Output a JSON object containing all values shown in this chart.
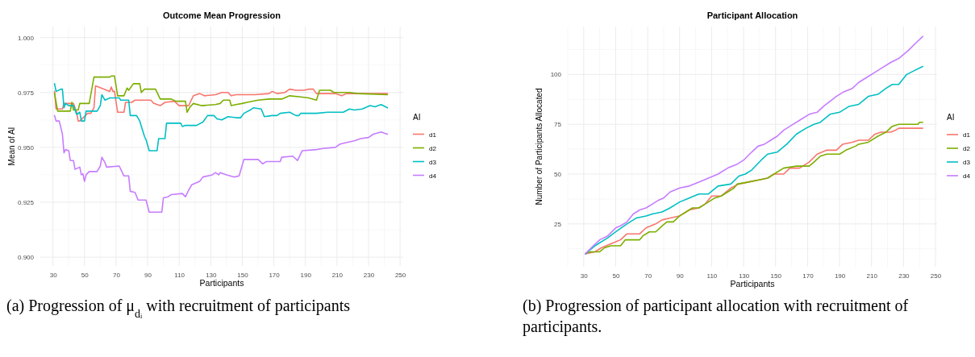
{
  "chart_data": [
    {
      "type": "line",
      "title": "Outcome Mean Progression",
      "xlabel": "Participants",
      "ylabel": "Mean of AI",
      "legend_title": "AI",
      "legend": "right",
      "grid": true,
      "xlim": [
        22,
        252
      ],
      "xticks": [
        30,
        50,
        70,
        90,
        110,
        130,
        150,
        170,
        190,
        210,
        230,
        250
      ],
      "ylim": [
        0.896,
        1.005
      ],
      "yticks": [
        {
          "value": 0.9,
          "label": "0.900"
        },
        {
          "value": 0.925,
          "label": "0.925"
        },
        {
          "value": 0.95,
          "label": "0.950"
        },
        {
          "value": 0.975,
          "label": "0.975"
        },
        {
          "value": 1,
          "label": "1.000"
        }
      ],
      "series": [
        {
          "name": "d1",
          "color": "#f8766d",
          "x": [
            31,
            32,
            36,
            37,
            42,
            43,
            45,
            46,
            47,
            52,
            54,
            56,
            57,
            66,
            67,
            68,
            69,
            71,
            75,
            76,
            80,
            82,
            92,
            94,
            98,
            101,
            107,
            110,
            116,
            117,
            119,
            123,
            126,
            133,
            137,
            141,
            143,
            146,
            158,
            167,
            169,
            172,
            177,
            180,
            184,
            189,
            192,
            195,
            197,
            201,
            209,
            213,
            216,
            242
          ],
          "values": [
            0.9755,
            0.9675,
            0.9675,
            0.97,
            0.97,
            0.97,
            0.966,
            0.962,
            0.962,
            0.9655,
            0.9655,
            0.968,
            0.978,
            0.9755,
            0.9775,
            0.9755,
            0.9755,
            0.966,
            0.966,
            0.9705,
            0.9705,
            0.9715,
            0.9715,
            0.97,
            0.969,
            0.9705,
            0.971,
            0.969,
            0.969,
            0.9705,
            0.9735,
            0.9745,
            0.9735,
            0.974,
            0.975,
            0.975,
            0.9735,
            0.974,
            0.974,
            0.9745,
            0.9755,
            0.9745,
            0.975,
            0.9765,
            0.976,
            0.976,
            0.9765,
            0.9765,
            0.9745,
            0.9745,
            0.9745,
            0.9735,
            0.9745,
            0.9745
          ]
        },
        {
          "name": "d2",
          "color": "#7cae00",
          "x": [
            31,
            33,
            41,
            42,
            43,
            46,
            47,
            53,
            56,
            66,
            67,
            69,
            71,
            75,
            77,
            78,
            81,
            85,
            86,
            88,
            95,
            98,
            105,
            108,
            114,
            115,
            117,
            119,
            124,
            133,
            136,
            138,
            142,
            143,
            146,
            150,
            153,
            160,
            167,
            175,
            180,
            187,
            192,
            197,
            199,
            206,
            208,
            218,
            223,
            242
          ],
          "values": [
            0.9747,
            0.9665,
            0.9665,
            0.9705,
            0.967,
            0.967,
            0.97,
            0.97,
            0.982,
            0.982,
            0.9825,
            0.9825,
            0.9735,
            0.9735,
            0.977,
            0.976,
            0.979,
            0.979,
            0.975,
            0.9765,
            0.9765,
            0.972,
            0.972,
            0.971,
            0.971,
            0.966,
            0.9685,
            0.97,
            0.969,
            0.9695,
            0.97,
            0.9715,
            0.9715,
            0.969,
            0.9695,
            0.97,
            0.9705,
            0.9715,
            0.972,
            0.972,
            0.9735,
            0.973,
            0.9725,
            0.9715,
            0.976,
            0.976,
            0.975,
            0.975,
            0.9745,
            0.974
          ]
        },
        {
          "name": "d3",
          "color": "#00bfc4",
          "x": [
            31,
            32,
            35,
            36,
            37,
            38,
            40,
            43,
            45,
            47,
            48,
            50,
            51,
            58,
            60,
            61,
            63,
            66,
            72,
            73,
            78,
            79,
            83,
            85,
            88,
            89,
            91,
            96,
            97,
            101,
            102,
            111,
            112,
            114,
            121,
            125,
            128,
            132,
            134,
            137,
            141,
            146,
            149,
            151,
            155,
            157,
            162,
            164,
            169,
            172,
            174,
            180,
            184,
            186,
            187,
            197,
            204,
            209,
            214,
            218,
            221,
            226,
            231,
            234,
            238,
            242
          ],
          "values": [
            0.979,
            0.9755,
            0.9765,
            0.9765,
            0.968,
            0.97,
            0.969,
            0.969,
            0.965,
            0.966,
            0.962,
            0.962,
            0.9665,
            0.9665,
            0.969,
            0.974,
            0.9715,
            0.9725,
            0.9725,
            0.9715,
            0.9715,
            0.9645,
            0.9645,
            0.962,
            0.955,
            0.9535,
            0.9485,
            0.9485,
            0.954,
            0.954,
            0.961,
            0.961,
            0.9595,
            0.96,
            0.96,
            0.9615,
            0.9645,
            0.9645,
            0.963,
            0.9625,
            0.964,
            0.9635,
            0.9635,
            0.9655,
            0.967,
            0.968,
            0.9675,
            0.964,
            0.9645,
            0.9645,
            0.9655,
            0.966,
            0.9645,
            0.9645,
            0.9655,
            0.9655,
            0.966,
            0.966,
            0.966,
            0.9675,
            0.967,
            0.9675,
            0.969,
            0.9685,
            0.9695,
            0.968
          ]
        },
        {
          "name": "d4",
          "color": "#c77cff",
          "x": [
            31,
            32,
            34,
            36,
            37,
            38,
            40,
            41,
            43,
            44,
            47,
            48,
            49,
            50,
            51,
            53,
            58,
            60,
            61,
            63,
            64,
            72,
            75,
            78,
            79,
            82,
            84,
            89,
            91,
            99,
            100,
            103,
            105,
            112,
            114,
            116,
            118,
            123,
            125,
            131,
            133,
            135,
            136,
            140,
            145,
            148,
            151,
            160,
            163,
            165,
            174,
            175,
            182,
            185,
            188,
            197,
            201,
            209,
            212,
            218,
            221,
            225,
            230,
            233,
            238,
            240,
            242
          ],
          "values": [
            0.9645,
            0.962,
            0.962,
            0.956,
            0.9475,
            0.949,
            0.9485,
            0.944,
            0.944,
            0.94,
            0.941,
            0.9375,
            0.938,
            0.9345,
            0.9375,
            0.939,
            0.939,
            0.9415,
            0.9455,
            0.943,
            0.941,
            0.9415,
            0.937,
            0.937,
            0.93,
            0.9295,
            0.926,
            0.926,
            0.9205,
            0.9205,
            0.927,
            0.9275,
            0.9285,
            0.929,
            0.9275,
            0.9305,
            0.933,
            0.9345,
            0.9365,
            0.9375,
            0.9385,
            0.9375,
            0.9385,
            0.9375,
            0.9365,
            0.937,
            0.9445,
            0.9445,
            0.9425,
            0.9435,
            0.9435,
            0.9455,
            0.946,
            0.944,
            0.9485,
            0.949,
            0.9495,
            0.95,
            0.9515,
            0.9525,
            0.953,
            0.954,
            0.9545,
            0.956,
            0.957,
            0.9565,
            0.956
          ]
        }
      ],
      "annotations": [
        "(a) Progression of μ$_{dᵢ}$ with recruitment of participants"
      ]
    },
    {
      "type": "line",
      "title": "Participant Allocation",
      "xlabel": "Participants",
      "ylabel": "Number of Participants Allocated",
      "legend_title": "AI",
      "legend": "right",
      "grid": true,
      "xlim": [
        20,
        251
      ],
      "xticks": [
        30,
        50,
        70,
        90,
        110,
        130,
        150,
        170,
        190,
        210,
        230,
        250
      ],
      "ylim": [
        3.5,
        124
      ],
      "yticks": [
        25,
        50,
        75,
        100
      ],
      "series": [
        {
          "name": "d1",
          "color": "#f8766d",
          "x": [
            31,
            37,
            41,
            47,
            53,
            57,
            65,
            69,
            75,
            79,
            84,
            90,
            96,
            102,
            106,
            110,
            116,
            122,
            127,
            133,
            139,
            145,
            149,
            155,
            159,
            165,
            171,
            176,
            182,
            188,
            192,
            198,
            202,
            208,
            212,
            216,
            222,
            225,
            227,
            242
          ],
          "values": [
            10,
            11,
            13,
            15,
            17,
            20,
            20,
            23,
            25,
            27,
            28,
            29,
            32,
            33,
            35,
            39,
            39,
            43,
            45,
            46,
            47,
            48,
            50,
            50,
            53,
            53,
            56,
            60,
            62,
            62,
            65,
            66,
            67,
            67,
            70,
            71,
            71,
            72,
            73,
            73
          ]
        },
        {
          "name": "d2",
          "color": "#7cae00",
          "x": [
            31,
            34,
            40,
            43,
            47,
            53,
            56,
            65,
            67,
            71,
            75,
            79,
            82,
            86,
            90,
            94,
            98,
            102,
            108,
            112,
            116,
            120,
            124,
            126,
            133,
            139,
            145,
            149,
            155,
            163,
            171,
            174,
            178,
            182,
            190,
            194,
            200,
            202,
            208,
            214,
            219,
            223,
            227,
            239,
            240,
            242
          ],
          "values": [
            10,
            11,
            11,
            13,
            14,
            14,
            17,
            17,
            19,
            21,
            21,
            24,
            26,
            26,
            29,
            31,
            33,
            33,
            36,
            38,
            39,
            41,
            43,
            45,
            46,
            47,
            48,
            50,
            53,
            54,
            54,
            56,
            59,
            60,
            60,
            62,
            64,
            65,
            66,
            69,
            71,
            74,
            75,
            75,
            76,
            76
          ]
        },
        {
          "name": "d3",
          "color": "#00bfc4",
          "x": [
            31,
            37,
            45,
            50,
            57,
            63,
            69,
            73,
            79,
            84,
            90,
            96,
            102,
            108,
            114,
            122,
            127,
            131,
            135,
            141,
            145,
            151,
            157,
            163,
            169,
            174,
            178,
            184,
            190,
            196,
            202,
            208,
            214,
            219,
            223,
            227,
            232,
            237,
            242
          ],
          "values": [
            10,
            14,
            18,
            21,
            25,
            28,
            29,
            30,
            31,
            33,
            36,
            38,
            40,
            40,
            44,
            45,
            49,
            50,
            52,
            57,
            60,
            61,
            65,
            70,
            73,
            75,
            76,
            80,
            81,
            84,
            85,
            89,
            90,
            93,
            95,
            95,
            100,
            102,
            104
          ]
        },
        {
          "name": "d4",
          "color": "#c77cff",
          "x": [
            31,
            36,
            40,
            45,
            50,
            53,
            57,
            61,
            65,
            69,
            73,
            77,
            80,
            84,
            90,
            96,
            102,
            108,
            114,
            120,
            126,
            130,
            135,
            139,
            143,
            147,
            151,
            155,
            161,
            165,
            171,
            176,
            180,
            188,
            192,
            198,
            202,
            206,
            212,
            216,
            222,
            227,
            233,
            238,
            242
          ],
          "values": [
            10,
            14,
            17,
            19,
            23,
            24,
            26,
            30,
            32,
            33,
            35,
            37,
            38,
            41,
            43,
            44,
            46,
            48,
            50,
            53,
            55,
            57,
            61,
            64,
            65,
            67,
            69,
            72,
            75,
            77,
            80,
            81,
            84,
            89,
            91,
            93,
            96,
            98,
            101,
            103,
            106,
            108,
            112,
            116,
            119
          ]
        }
      ],
      "annotations": [
        "(b) Progression of participant allocation with recruitment of participants."
      ]
    }
  ]
}
